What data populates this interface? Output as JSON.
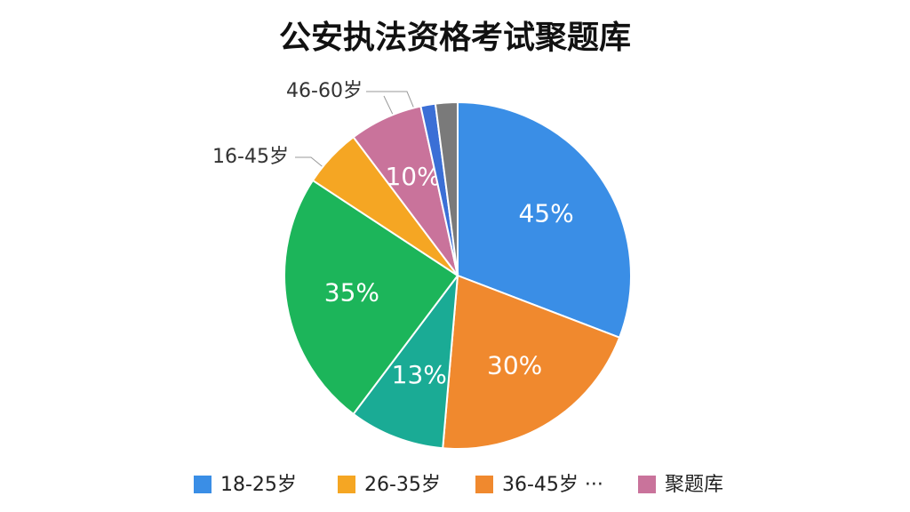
{
  "chart_data": {
    "type": "pie",
    "title": "公安执法资格考试聚题库",
    "categories": [
      "18-25岁",
      "36-45岁 ···",
      null,
      null,
      "26-35岁",
      "聚题库",
      null,
      null
    ],
    "values": [
      45,
      30,
      13,
      35,
      8,
      10,
      2,
      3
    ],
    "value_labels": [
      "45%",
      "30%",
      "13%",
      "35%",
      null,
      "10%",
      null,
      null
    ],
    "colors": [
      "#3a8ee6",
      "#f0892e",
      "#1aab95",
      "#1cb55a",
      "#f5a623",
      "#c9739b",
      "#3b6fd6",
      "#7a7a7a"
    ],
    "legend_order": [
      0,
      4,
      1,
      5
    ],
    "legend": "bottom",
    "annotations": [
      "46-60岁",
      "16-45岁"
    ]
  }
}
